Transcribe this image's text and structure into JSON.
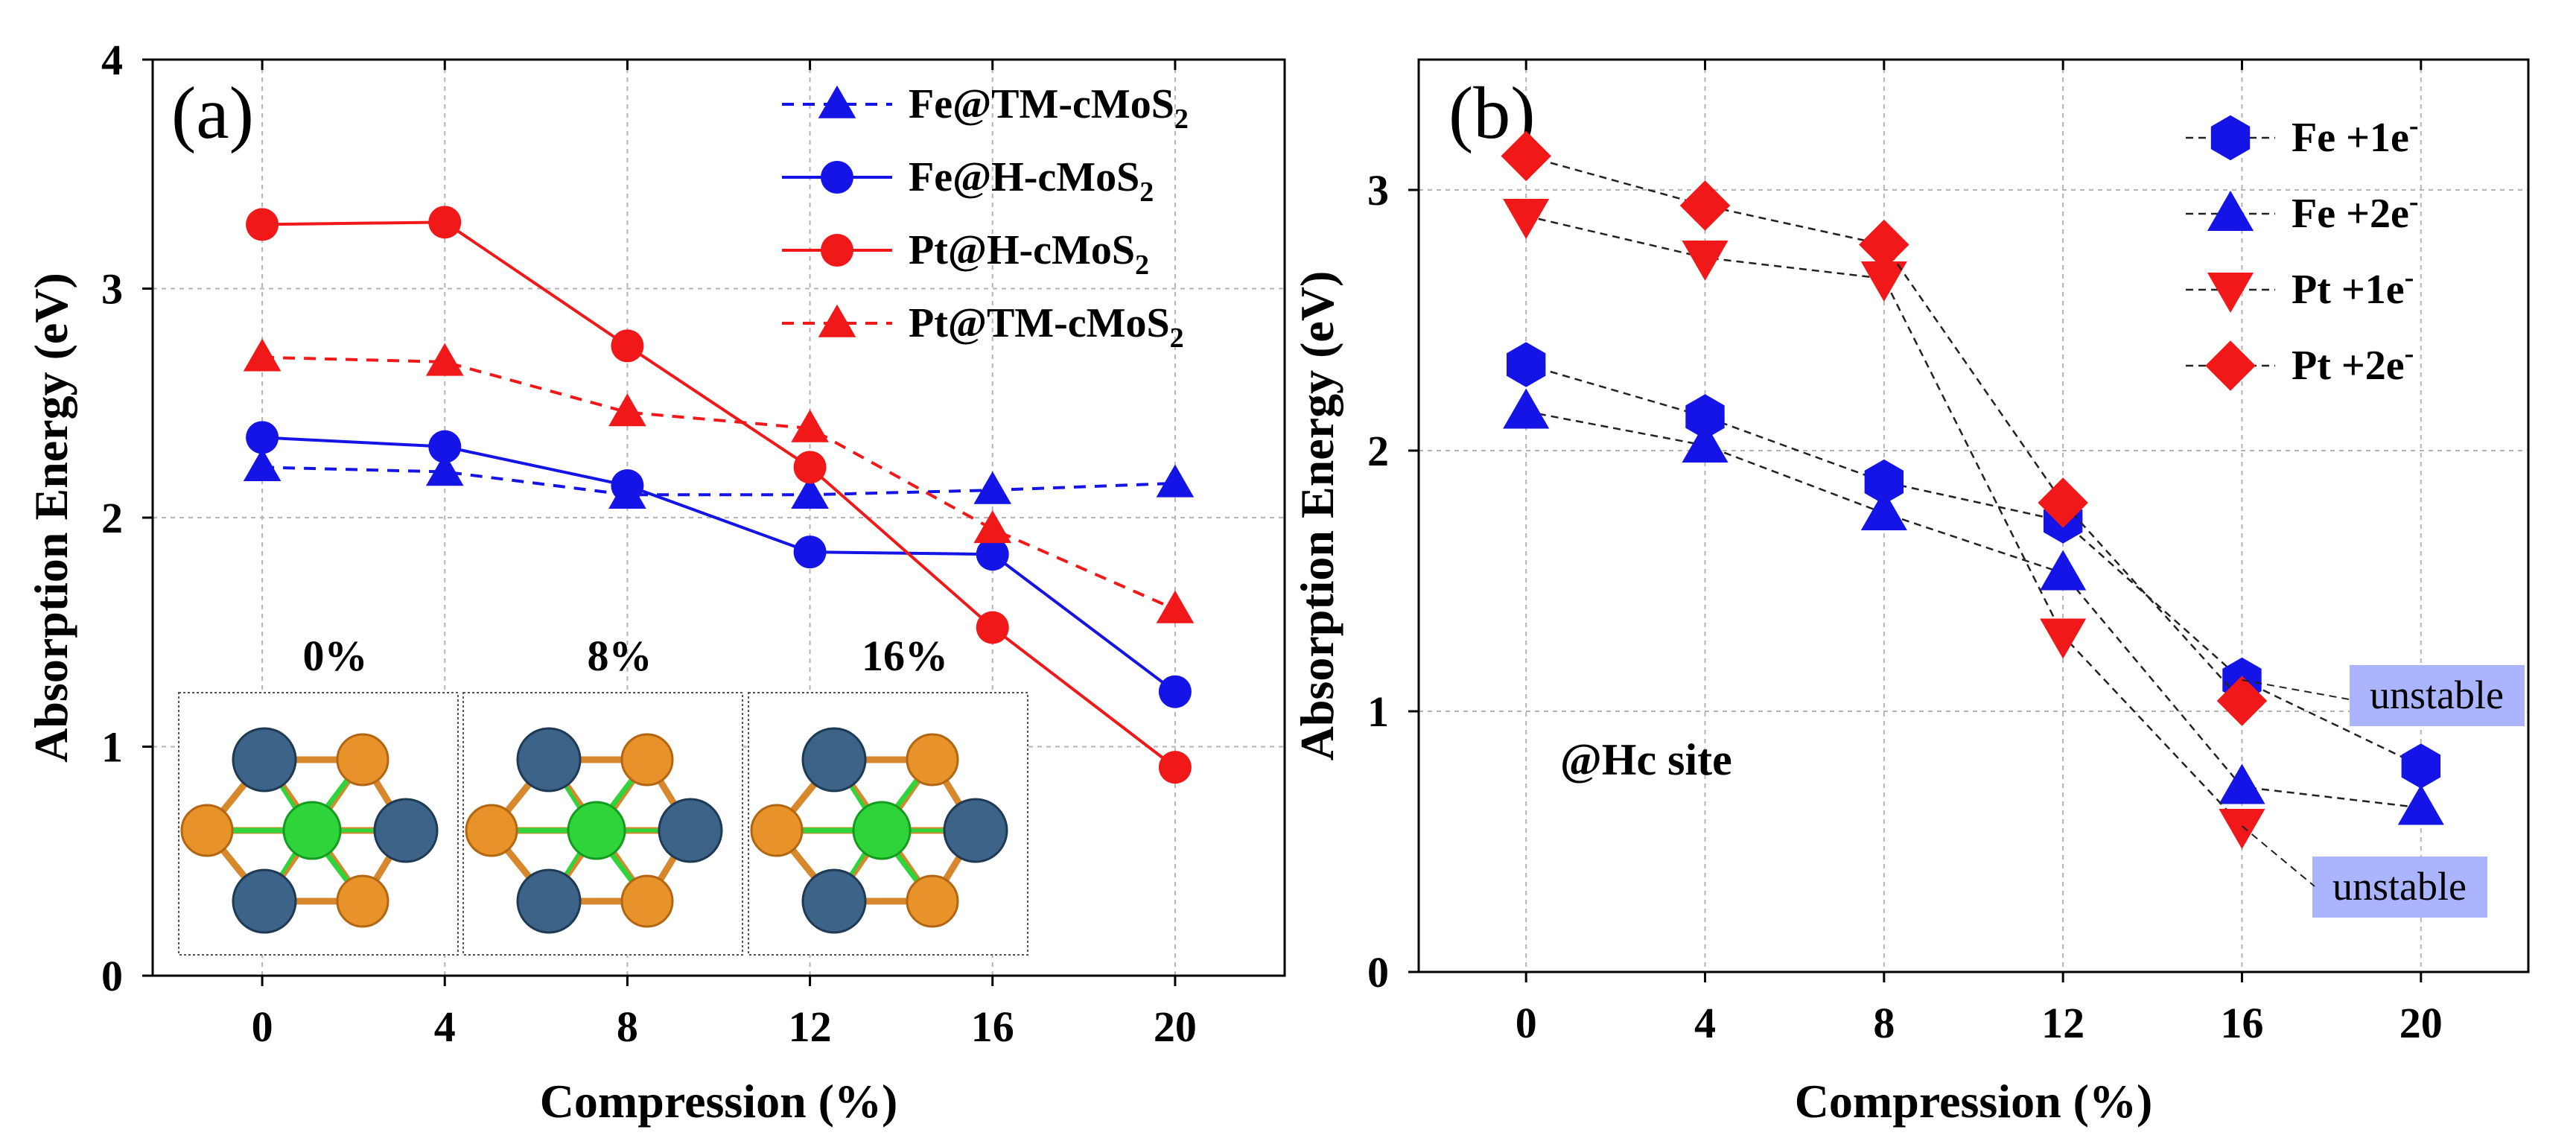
{
  "colors": {
    "blue": "#1414e6",
    "red": "#f01818",
    "dashed_black": "#222222",
    "grid": "#b4b4b4",
    "unstable_bg": "#aab4ff",
    "mo_atom": "#3d6488",
    "s_atom": "#e8922a",
    "center_atom": "#2fd43a"
  },
  "chart_data": [
    {
      "type": "line",
      "panel_label": "(a)",
      "title": "",
      "xlabel": "Compression (%)",
      "ylabel": "Absorption Energy (eV)",
      "x": [
        0,
        4,
        8,
        12,
        16,
        20
      ],
      "xticks": [
        "0",
        "4",
        "8",
        "12",
        "16",
        "20"
      ],
      "xlim": [
        -2.4,
        22.4
      ],
      "ylim": [
        0,
        4
      ],
      "yticks": [
        "0",
        "1",
        "2",
        "3",
        "4"
      ],
      "grid": true,
      "legend_position": "top-right",
      "series": [
        {
          "name": "Fe@TM-cMoS2",
          "legend_main": "Fe@TM-cMoS",
          "legend_sub": "2",
          "color": "#1414e6",
          "dashed": true,
          "marker": "triangle-up",
          "values": [
            2.22,
            2.2,
            2.1,
            2.1,
            2.12,
            2.15
          ]
        },
        {
          "name": "Fe@H-cMoS2",
          "legend_main": "Fe@H-cMoS",
          "legend_sub": "2",
          "color": "#1414e6",
          "dashed": false,
          "marker": "circle",
          "values": [
            2.35,
            2.31,
            2.14,
            1.85,
            1.84,
            1.24
          ]
        },
        {
          "name": "Pt@H-cMoS2",
          "legend_main": "Pt@H-cMoS",
          "legend_sub": "2",
          "color": "#f01818",
          "dashed": false,
          "marker": "circle",
          "values": [
            3.28,
            3.29,
            2.75,
            2.22,
            1.52,
            0.91
          ]
        },
        {
          "name": "Pt@TM-cMoS2",
          "legend_main": "Pt@TM-cMoS",
          "legend_sub": "2",
          "color": "#f01818",
          "dashed": true,
          "marker": "triangle-up",
          "values": [
            2.7,
            2.68,
            2.46,
            2.39,
            1.95,
            1.6
          ]
        }
      ],
      "inset_labels": [
        "0%",
        "8%",
        "16%"
      ]
    },
    {
      "type": "line",
      "panel_label": "(b)",
      "title": "",
      "xlabel": "Compression (%)",
      "ylabel": "Absorption Energy (eV)",
      "x": [
        0,
        4,
        8,
        12,
        16,
        20
      ],
      "xticks": [
        "0",
        "4",
        "8",
        "12",
        "16",
        "20"
      ],
      "xlim": [
        -2.4,
        22.4
      ],
      "ylim": [
        0,
        3.5
      ],
      "yticks": [
        "0",
        "1",
        "2",
        "3"
      ],
      "grid": true,
      "legend_position": "top-right",
      "annotation": "@Hc site",
      "unstable_labels": [
        "unstable",
        "unstable"
      ],
      "series": [
        {
          "name": "Fe +1e-",
          "legend_main": "Fe +1e",
          "legend_sup": "-",
          "color": "#1414e6",
          "dashed": true,
          "marker": "hexagon",
          "values": [
            2.33,
            2.13,
            1.88,
            1.73,
            1.12,
            0.79
          ]
        },
        {
          "name": "Fe +2e-",
          "legend_main": "Fe +2e",
          "legend_sup": "-",
          "color": "#1414e6",
          "dashed": true,
          "marker": "triangle-up",
          "values": [
            2.15,
            2.02,
            1.76,
            1.53,
            0.71,
            0.63
          ]
        },
        {
          "name": "Pt +1e-",
          "legend_main": "Pt +1e",
          "legend_sup": "-",
          "color": "#f01818",
          "dashed": true,
          "marker": "triangle-down",
          "values": [
            2.9,
            2.74,
            2.66,
            1.29,
            0.56,
            null
          ]
        },
        {
          "name": "Pt +2e-",
          "legend_main": "Pt +2e",
          "legend_sup": "-",
          "color": "#f01818",
          "dashed": true,
          "marker": "diamond",
          "values": [
            3.13,
            2.94,
            2.79,
            1.8,
            1.04,
            null
          ]
        }
      ]
    }
  ]
}
